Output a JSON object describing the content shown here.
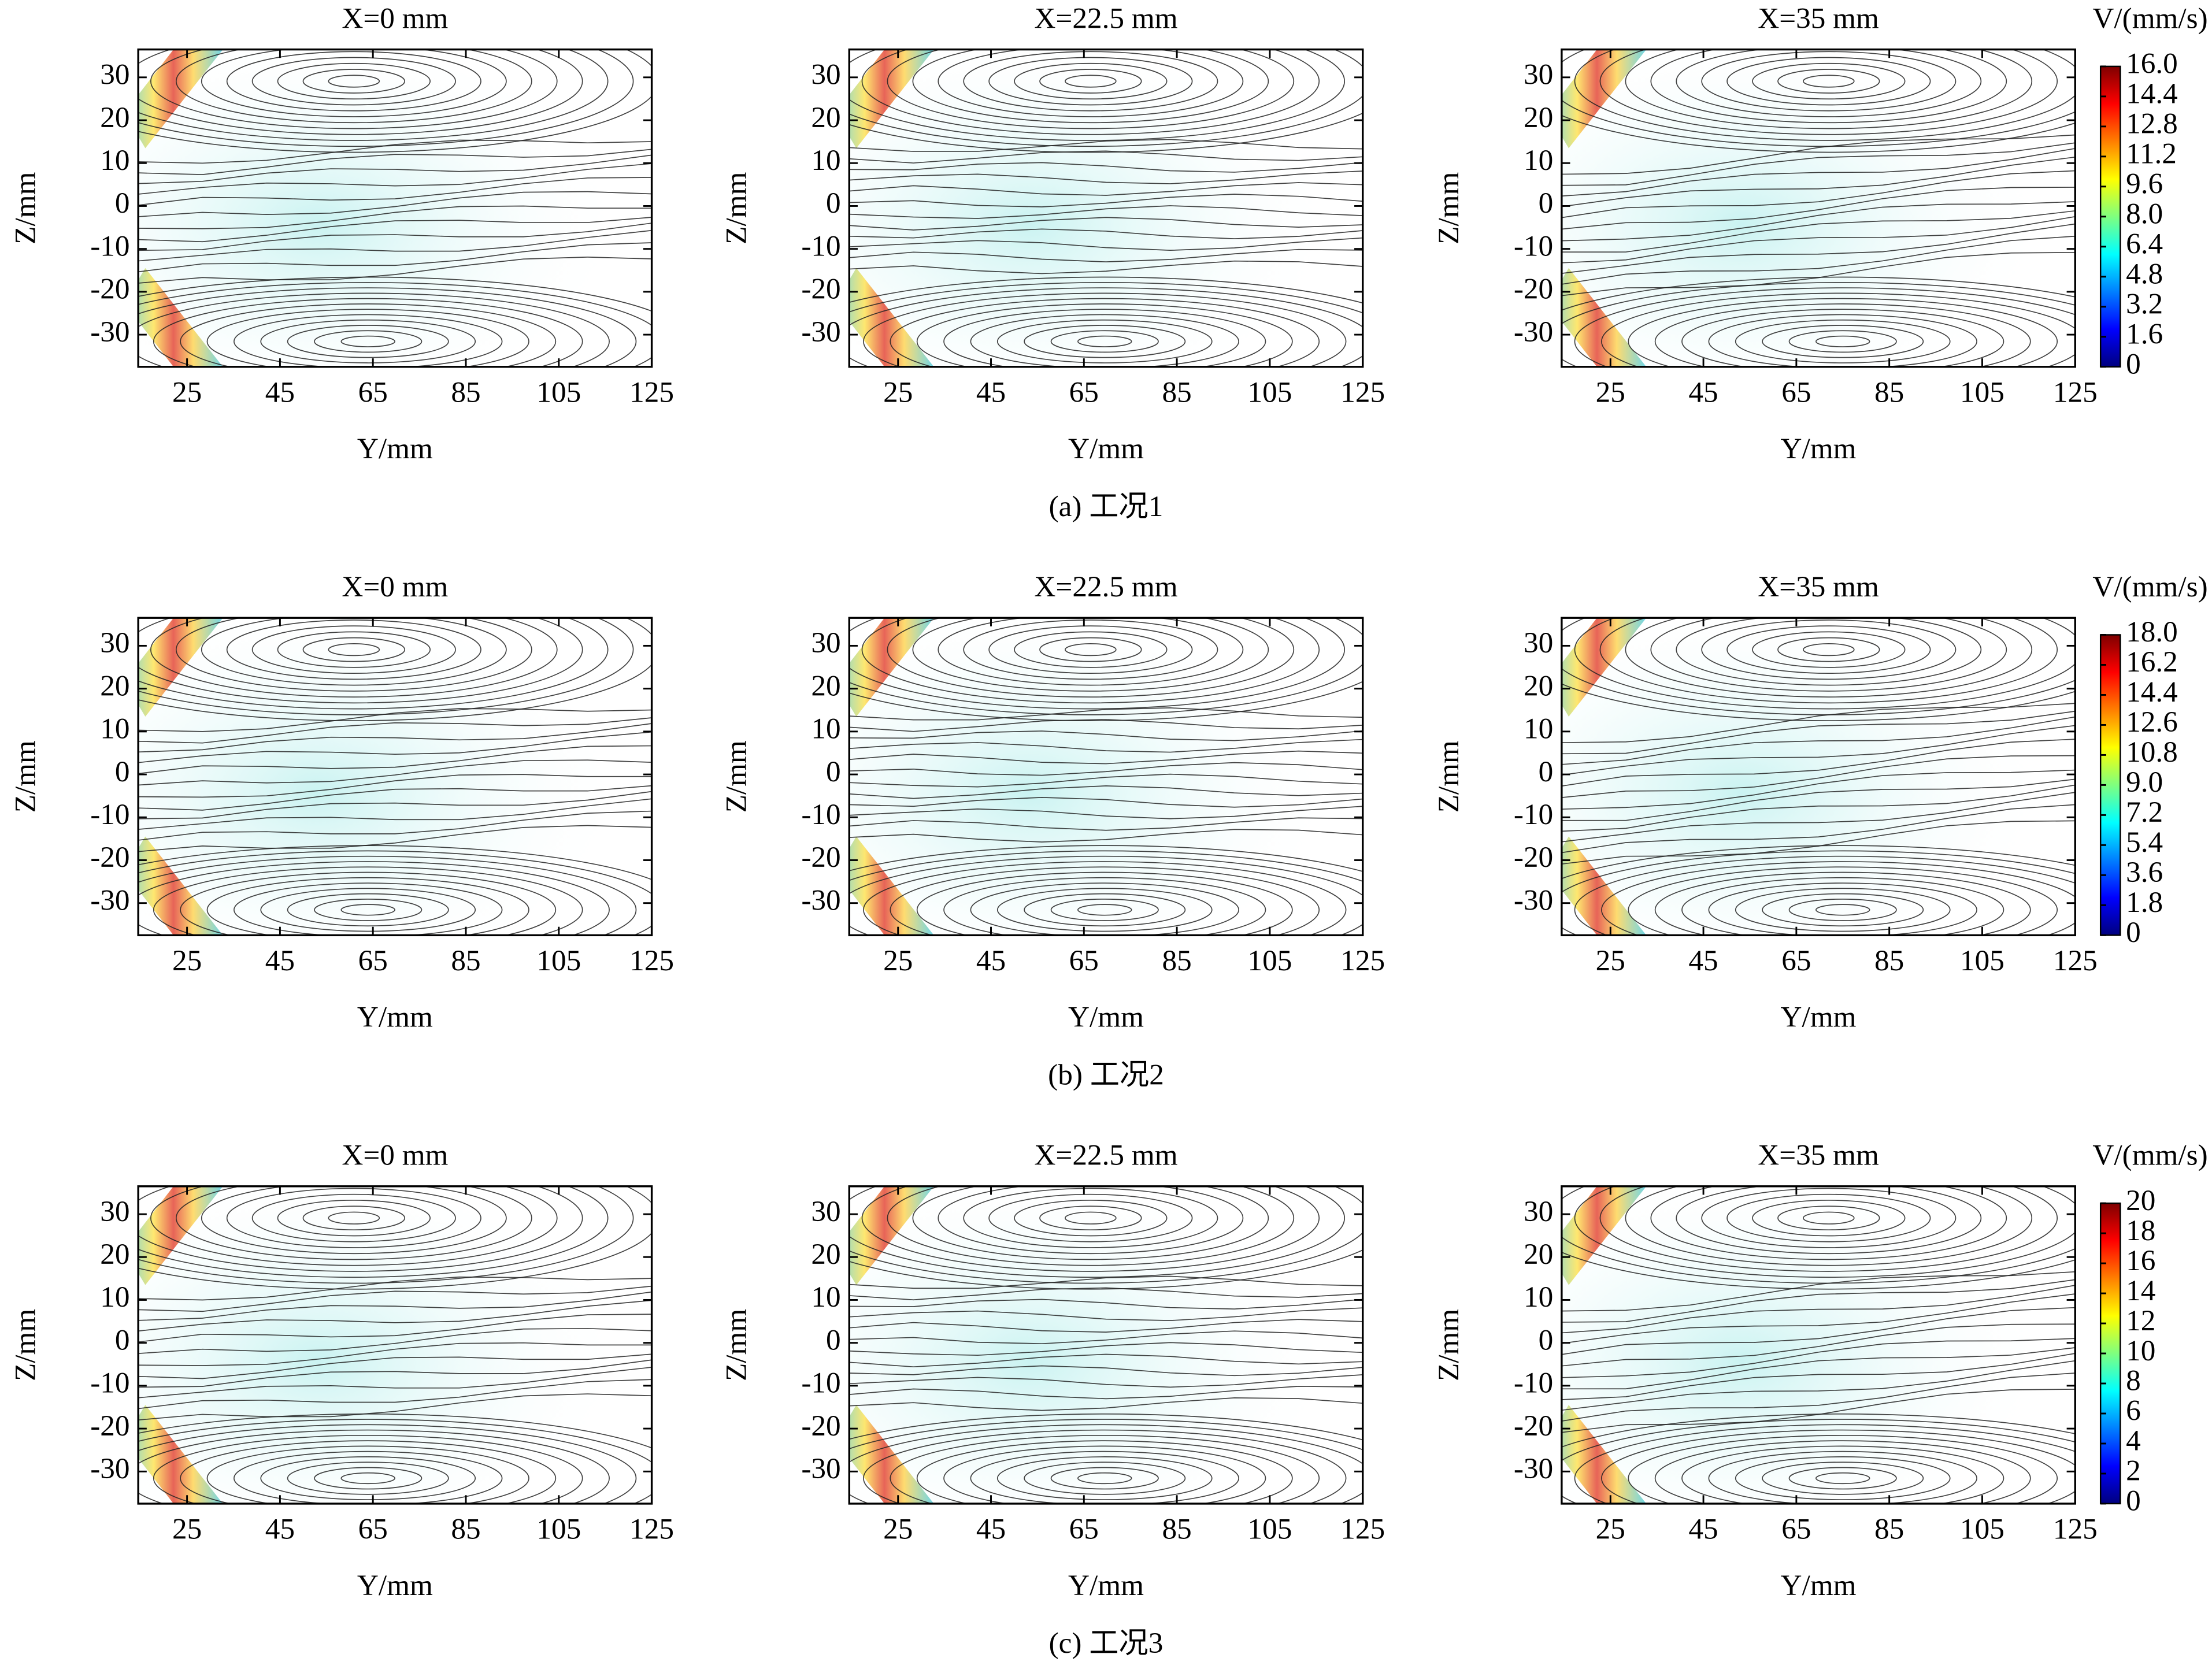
{
  "chart_data": [
    {
      "type": "streamline",
      "title": "X=0 mm",
      "x_label": "Y/mm",
      "y_label": "Z/mm",
      "xlim": [
        14.5,
        125
      ],
      "ylim": [
        -37.5,
        36.5
      ],
      "xticks": [
        25,
        45,
        65,
        85,
        105,
        125
      ],
      "yticks": [
        -30,
        -20,
        -10,
        0,
        10,
        20,
        30
      ]
    },
    {
      "type": "streamline",
      "title": "X=22.5 mm",
      "x_label": "Y/mm",
      "y_label": "Z/mm",
      "xlim": [
        14.5,
        125
      ],
      "ylim": [
        -37.5,
        36.5
      ],
      "xticks": [
        25,
        45,
        65,
        85,
        105,
        125
      ],
      "yticks": [
        -30,
        -20,
        -10,
        0,
        10,
        20,
        30
      ]
    },
    {
      "type": "streamline",
      "title": "X=35 mm",
      "x_label": "Y/mm",
      "y_label": "Z/mm",
      "xlim": [
        14.5,
        125
      ],
      "ylim": [
        -37.5,
        36.5
      ],
      "xticks": [
        25,
        45,
        65,
        85,
        105,
        125
      ],
      "yticks": [
        -30,
        -20,
        -10,
        0,
        10,
        20,
        30
      ],
      "colorbar": {
        "label": "V/(mm/s)",
        "lim": [
          0,
          16
        ],
        "ticks": [
          0,
          1.6,
          3.2,
          4.8,
          6.4,
          {
            "value": 8,
            "label": "8.0"
          },
          9.6,
          11.2,
          12.8,
          14.4,
          {
            "value": 16,
            "label": "16.0"
          }
        ],
        "colors": [
          "#00007f",
          "#0000ff",
          "#007fff",
          "#00ffff",
          "#7fff7f",
          "#ffff00",
          "#ff7f00",
          "#ff0000",
          "#7f0000"
        ]
      }
    },
    {
      "type": "streamline",
      "title": "X=0 mm",
      "x_label": "Y/mm",
      "y_label": "Z/mm",
      "xlim": [
        14.5,
        125
      ],
      "ylim": [
        -37.5,
        36.5
      ],
      "xticks": [
        25,
        45,
        65,
        85,
        105,
        125
      ],
      "yticks": [
        -30,
        -20,
        -10,
        0,
        10,
        20,
        30
      ]
    },
    {
      "type": "streamline",
      "title": "X=22.5 mm",
      "x_label": "Y/mm",
      "y_label": "Z/mm",
      "xlim": [
        14.5,
        125
      ],
      "ylim": [
        -37.5,
        36.5
      ],
      "xticks": [
        25,
        45,
        65,
        85,
        105,
        125
      ],
      "yticks": [
        -30,
        -20,
        -10,
        0,
        10,
        20,
        30
      ]
    },
    {
      "type": "streamline",
      "title": "X=35 mm",
      "x_label": "Y/mm",
      "y_label": "Z/mm",
      "xlim": [
        14.5,
        125
      ],
      "ylim": [
        -37.5,
        36.5
      ],
      "xticks": [
        25,
        45,
        65,
        85,
        105,
        125
      ],
      "yticks": [
        -30,
        -20,
        -10,
        0,
        10,
        20,
        30
      ],
      "colorbar": {
        "label": "V/(mm/s)",
        "lim": [
          0,
          18
        ],
        "ticks": [
          0,
          1.8,
          3.6,
          5.4,
          7.2,
          {
            "value": 9,
            "label": "9.0"
          },
          10.8,
          12.6,
          14.4,
          16.2,
          {
            "value": 18,
            "label": "18.0"
          }
        ],
        "colors": [
          "#00007f",
          "#0000ff",
          "#007fff",
          "#00ffff",
          "#7fff7f",
          "#ffff00",
          "#ff7f00",
          "#ff0000",
          "#7f0000"
        ]
      }
    },
    {
      "type": "streamline",
      "title": "X=0 mm",
      "x_label": "Y/mm",
      "y_label": "Z/mm",
      "xlim": [
        14.5,
        125
      ],
      "ylim": [
        -37.5,
        36.5
      ],
      "xticks": [
        25,
        45,
        65,
        85,
        105,
        125
      ],
      "yticks": [
        -30,
        -20,
        -10,
        0,
        10,
        20,
        30
      ]
    },
    {
      "type": "streamline",
      "title": "X=22.5 mm",
      "x_label": "Y/mm",
      "y_label": "Z/mm",
      "xlim": [
        14.5,
        125
      ],
      "ylim": [
        -37.5,
        36.5
      ],
      "xticks": [
        25,
        45,
        65,
        85,
        105,
        125
      ],
      "yticks": [
        -30,
        -20,
        -10,
        0,
        10,
        20,
        30
      ]
    },
    {
      "type": "streamline",
      "title": "X=35 mm",
      "x_label": "Y/mm",
      "y_label": "Z/mm",
      "xlim": [
        14.5,
        125
      ],
      "ylim": [
        -37.5,
        36.5
      ],
      "xticks": [
        25,
        45,
        65,
        85,
        105,
        125
      ],
      "yticks": [
        -30,
        -20,
        -10,
        0,
        10,
        20,
        30
      ],
      "colorbar": {
        "label": "V/(mm/s)",
        "lim": [
          0,
          20
        ],
        "ticks": [
          0,
          2,
          4,
          6,
          8,
          10,
          12,
          14,
          16,
          18,
          20
        ],
        "colors": [
          "#00007f",
          "#0000ff",
          "#007fff",
          "#00ffff",
          "#7fff7f",
          "#ffff00",
          "#ff7f00",
          "#ff0000",
          "#7f0000"
        ]
      }
    }
  ],
  "captions": [
    "(a) 工况1",
    "(b) 工况2",
    "(c) 工况3"
  ]
}
